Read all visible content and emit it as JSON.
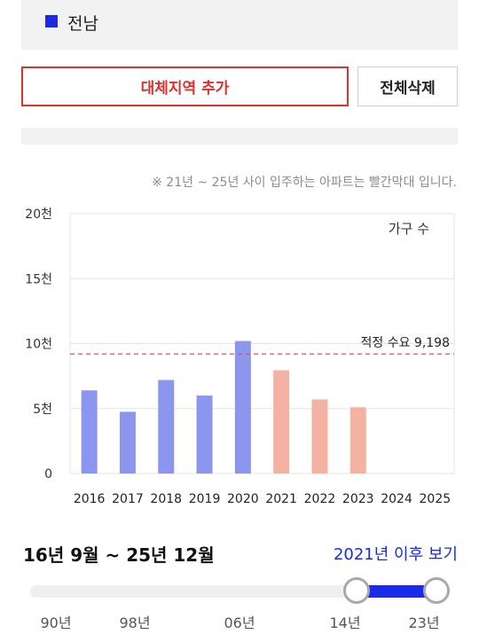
{
  "region": {
    "label": "전남",
    "color": "#1a2be8"
  },
  "buttons": {
    "add_alt_region": "대체지역 추가",
    "delete_all": "전체삭제"
  },
  "note": "※ 21년 ~ 25년 사이 입주하는 아파트는 빨간막대 입니다.",
  "chart_data": {
    "type": "bar",
    "legend": "가구 수",
    "categories": [
      "2016",
      "2017",
      "2018",
      "2019",
      "2020",
      "2021",
      "2022",
      "2023",
      "2024",
      "2025"
    ],
    "values": [
      6400,
      4750,
      7200,
      6000,
      10200,
      7950,
      5700,
      5100,
      0,
      0
    ],
    "colors": [
      "#8d96ef",
      "#8d96ef",
      "#8d96ef",
      "#8d96ef",
      "#8d96ef",
      "#f4b2a2",
      "#f4b2a2",
      "#f4b2a2",
      "#f4b2a2",
      "#f4b2a2"
    ],
    "ylim": [
      0,
      20000
    ],
    "yticks": [
      {
        "value": 0,
        "label": "0"
      },
      {
        "value": 5000,
        "label": "5천"
      },
      {
        "value": 10000,
        "label": "10천"
      },
      {
        "value": 15000,
        "label": "15천"
      },
      {
        "value": 20000,
        "label": "20천"
      }
    ],
    "reference_line": {
      "value": 9198,
      "label": "적정 수요 9,198",
      "color": "#e05555"
    },
    "grid": true
  },
  "period": {
    "range_text": "16년 9월 ~ 25년 12월",
    "after_link": "2021년 이후 보기"
  },
  "slider": {
    "selected_start": "14년",
    "selected_end": "23년",
    "tick_labels": [
      "90년",
      "98년",
      "06년",
      "14년",
      "23년"
    ]
  }
}
